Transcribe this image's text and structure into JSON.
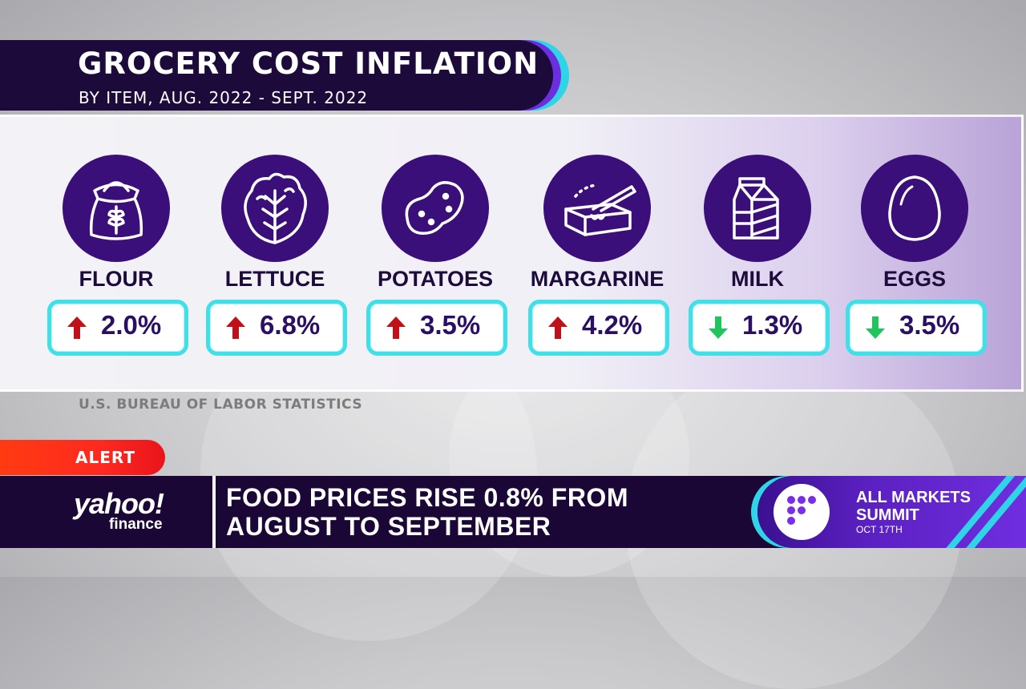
{
  "title": "GROCERY COST INFLATION",
  "subtitle": "BY ITEM, AUG. 2022 - SEPT. 2022",
  "items": [
    {
      "label": "FLOUR",
      "value": "2.0%",
      "direction": "up",
      "icon": "flour-sack-icon"
    },
    {
      "label": "LETTUCE",
      "value": "6.8%",
      "direction": "up",
      "icon": "lettuce-icon"
    },
    {
      "label": "POTATOES",
      "value": "3.5%",
      "direction": "up",
      "icon": "potato-icon"
    },
    {
      "label": "MARGARINE",
      "value": "4.2%",
      "direction": "up",
      "icon": "margarine-icon"
    },
    {
      "label": "MILK",
      "value": "1.3%",
      "direction": "down",
      "icon": "milk-carton-icon"
    },
    {
      "label": "EGGS",
      "value": "3.5%",
      "direction": "down",
      "icon": "egg-icon"
    }
  ],
  "source": "U.S. BUREAU OF LABOR STATISTICS",
  "alert": "ALERT",
  "logo": {
    "main": "yahoo!",
    "sub": "finance"
  },
  "headline": {
    "line1": "FOOD PRICES RISE 0.8% FROM",
    "line2": "AUGUST TO SEPTEMBER"
  },
  "summit": {
    "line1": "ALL MARKETS",
    "line2": "SUMMIT",
    "date": "OCT 17TH"
  },
  "colors": {
    "brand_dark": "#1b0736",
    "icon_circle": "#3b0f7a",
    "pill_border": "#3fe0e8",
    "arrow_up": "#c0101a",
    "arrow_down": "#22c45e",
    "alert": "#ff3b12",
    "accent_purple": "#6d2ee0"
  }
}
